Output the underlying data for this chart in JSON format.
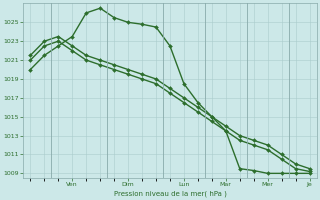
{
  "bg_color": "#cce8e8",
  "grid_color": "#aacccc",
  "line_color": "#2d6e2d",
  "marker_color": "#2d6e2d",
  "xlabel": "Pression niveau de la mer( hPa )",
  "ylim": [
    1008.5,
    1027.0
  ],
  "yticks": [
    1009,
    1011,
    1013,
    1015,
    1017,
    1019,
    1021,
    1023,
    1025
  ],
  "x_day_labels": [
    "Ven",
    "Dim",
    "Lun",
    "Mar",
    "Mer",
    "Je"
  ],
  "x_day_positions": [
    3.0,
    7.0,
    11.0,
    14.0,
    17.0,
    20.0
  ],
  "x_divider_positions": [
    1.5,
    5.5,
    9.5,
    12.5,
    15.5,
    18.5
  ],
  "series": [
    [
      1020.0,
      1021.5,
      1022.5,
      1023.5,
      1026.0,
      1026.5,
      1025.5,
      1025.0,
      1024.8,
      1024.5,
      1022.5,
      1018.5,
      1016.5,
      1015.0,
      1013.5,
      1009.5,
      1009.3,
      1009.0,
      1009.0,
      1009.0,
      1009.0
    ],
    [
      1021.5,
      1023.0,
      1023.5,
      1022.5,
      1021.5,
      1021.0,
      1020.5,
      1020.0,
      1019.5,
      1019.0,
      1018.0,
      1017.0,
      1016.0,
      1015.0,
      1014.0,
      1013.0,
      1012.5,
      1012.0,
      1011.0,
      1010.0,
      1009.5
    ],
    [
      1021.0,
      1022.5,
      1023.0,
      1022.0,
      1021.0,
      1020.5,
      1020.0,
      1019.5,
      1019.0,
      1018.5,
      1017.5,
      1016.5,
      1015.5,
      1014.5,
      1013.5,
      1012.5,
      1012.0,
      1011.5,
      1010.5,
      1009.5,
      1009.2
    ]
  ],
  "n_points": 21
}
